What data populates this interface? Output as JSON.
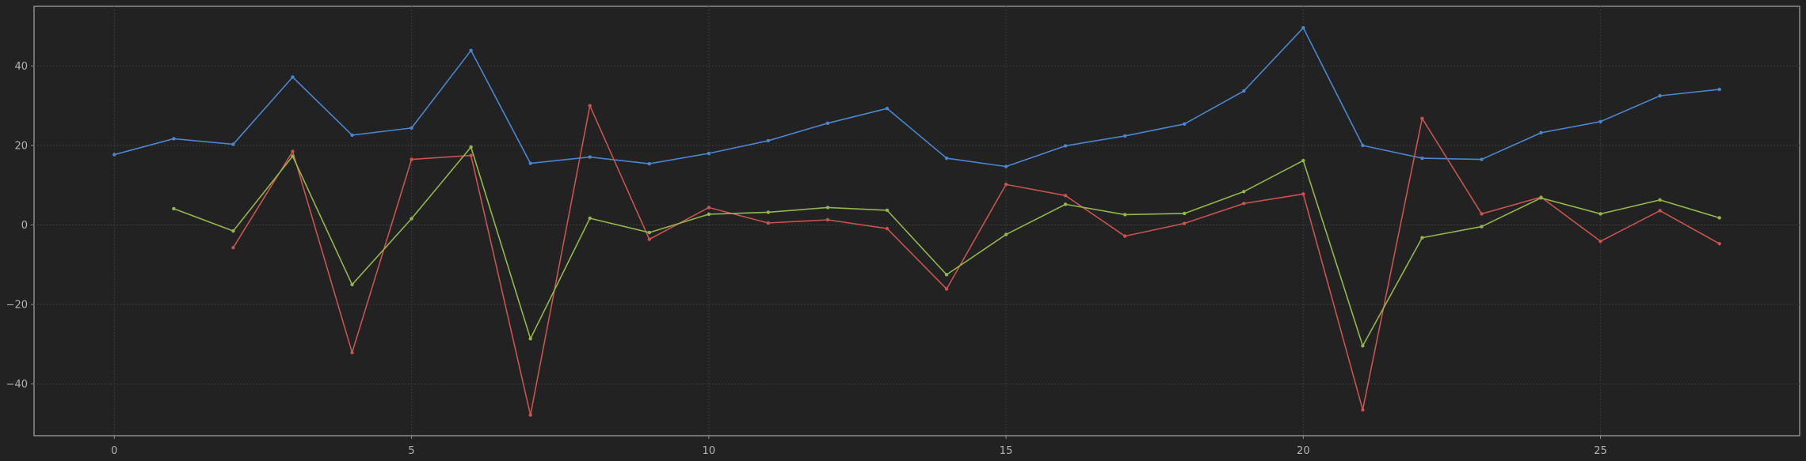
{
  "colors": {
    "background": "#222222",
    "frame": "#8c8c8c",
    "grid": "#3a3a3a",
    "tick_text": "#b3b3b3"
  },
  "chart_data": {
    "type": "line",
    "title": "",
    "xlabel": "",
    "ylabel": "",
    "xlim": [
      -1.35,
      28.35
    ],
    "ylim": [
      -53,
      55
    ],
    "xticks": [
      0,
      5,
      10,
      15,
      20,
      25
    ],
    "yticks": [
      -40,
      -20,
      0,
      20,
      40
    ],
    "grid": true,
    "legend": "none",
    "series": [
      {
        "color": "#4a86d0",
        "x": [
          0,
          1,
          2,
          3,
          4,
          5,
          6,
          7,
          8,
          9,
          10,
          11,
          12,
          13,
          14,
          15,
          16,
          17,
          18,
          19,
          20,
          21,
          22,
          23,
          24,
          25,
          26,
          27
        ],
        "y": [
          17.7,
          21.7,
          20.3,
          37.2,
          22.6,
          24.4,
          43.9,
          15.5,
          17.1,
          15.4,
          18.0,
          21.2,
          25.6,
          29.3,
          16.8,
          14.7,
          19.9,
          22.4,
          25.4,
          33.7,
          49.6,
          20.0,
          16.8,
          16.5,
          23.2,
          26.0,
          32.5,
          34.1
        ]
      },
      {
        "color": "#c7534f",
        "x": [
          2,
          3,
          4,
          5,
          6,
          7,
          8,
          9,
          10,
          11,
          12,
          13,
          14,
          15,
          16,
          17,
          18,
          19,
          20,
          21,
          22,
          23,
          24,
          25,
          26,
          27
        ],
        "y": [
          -5.7,
          18.5,
          -32.1,
          16.5,
          17.5,
          -47.8,
          30.0,
          -3.6,
          4.4,
          0.5,
          1.3,
          -0.9,
          -16.1,
          10.2,
          7.4,
          -2.8,
          0.4,
          5.4,
          7.8,
          -46.5,
          26.8,
          2.8,
          7.0,
          -4.1,
          3.6,
          -4.7
        ]
      },
      {
        "color": "#92b64a",
        "x": [
          1,
          2,
          3,
          4,
          5,
          6,
          7,
          8,
          9,
          10,
          11,
          12,
          13,
          14,
          15,
          16,
          17,
          18,
          19,
          20,
          21,
          22,
          23,
          24,
          25,
          26,
          27
        ],
        "y": [
          4.1,
          -1.5,
          17.3,
          -15.0,
          1.6,
          19.6,
          -28.6,
          1.7,
          -1.9,
          2.7,
          3.2,
          4.4,
          3.7,
          -12.5,
          -2.4,
          5.2,
          2.6,
          2.9,
          8.4,
          16.2,
          -30.4,
          -3.2,
          -0.4,
          6.8,
          2.8,
          6.3,
          1.8
        ]
      }
    ]
  }
}
